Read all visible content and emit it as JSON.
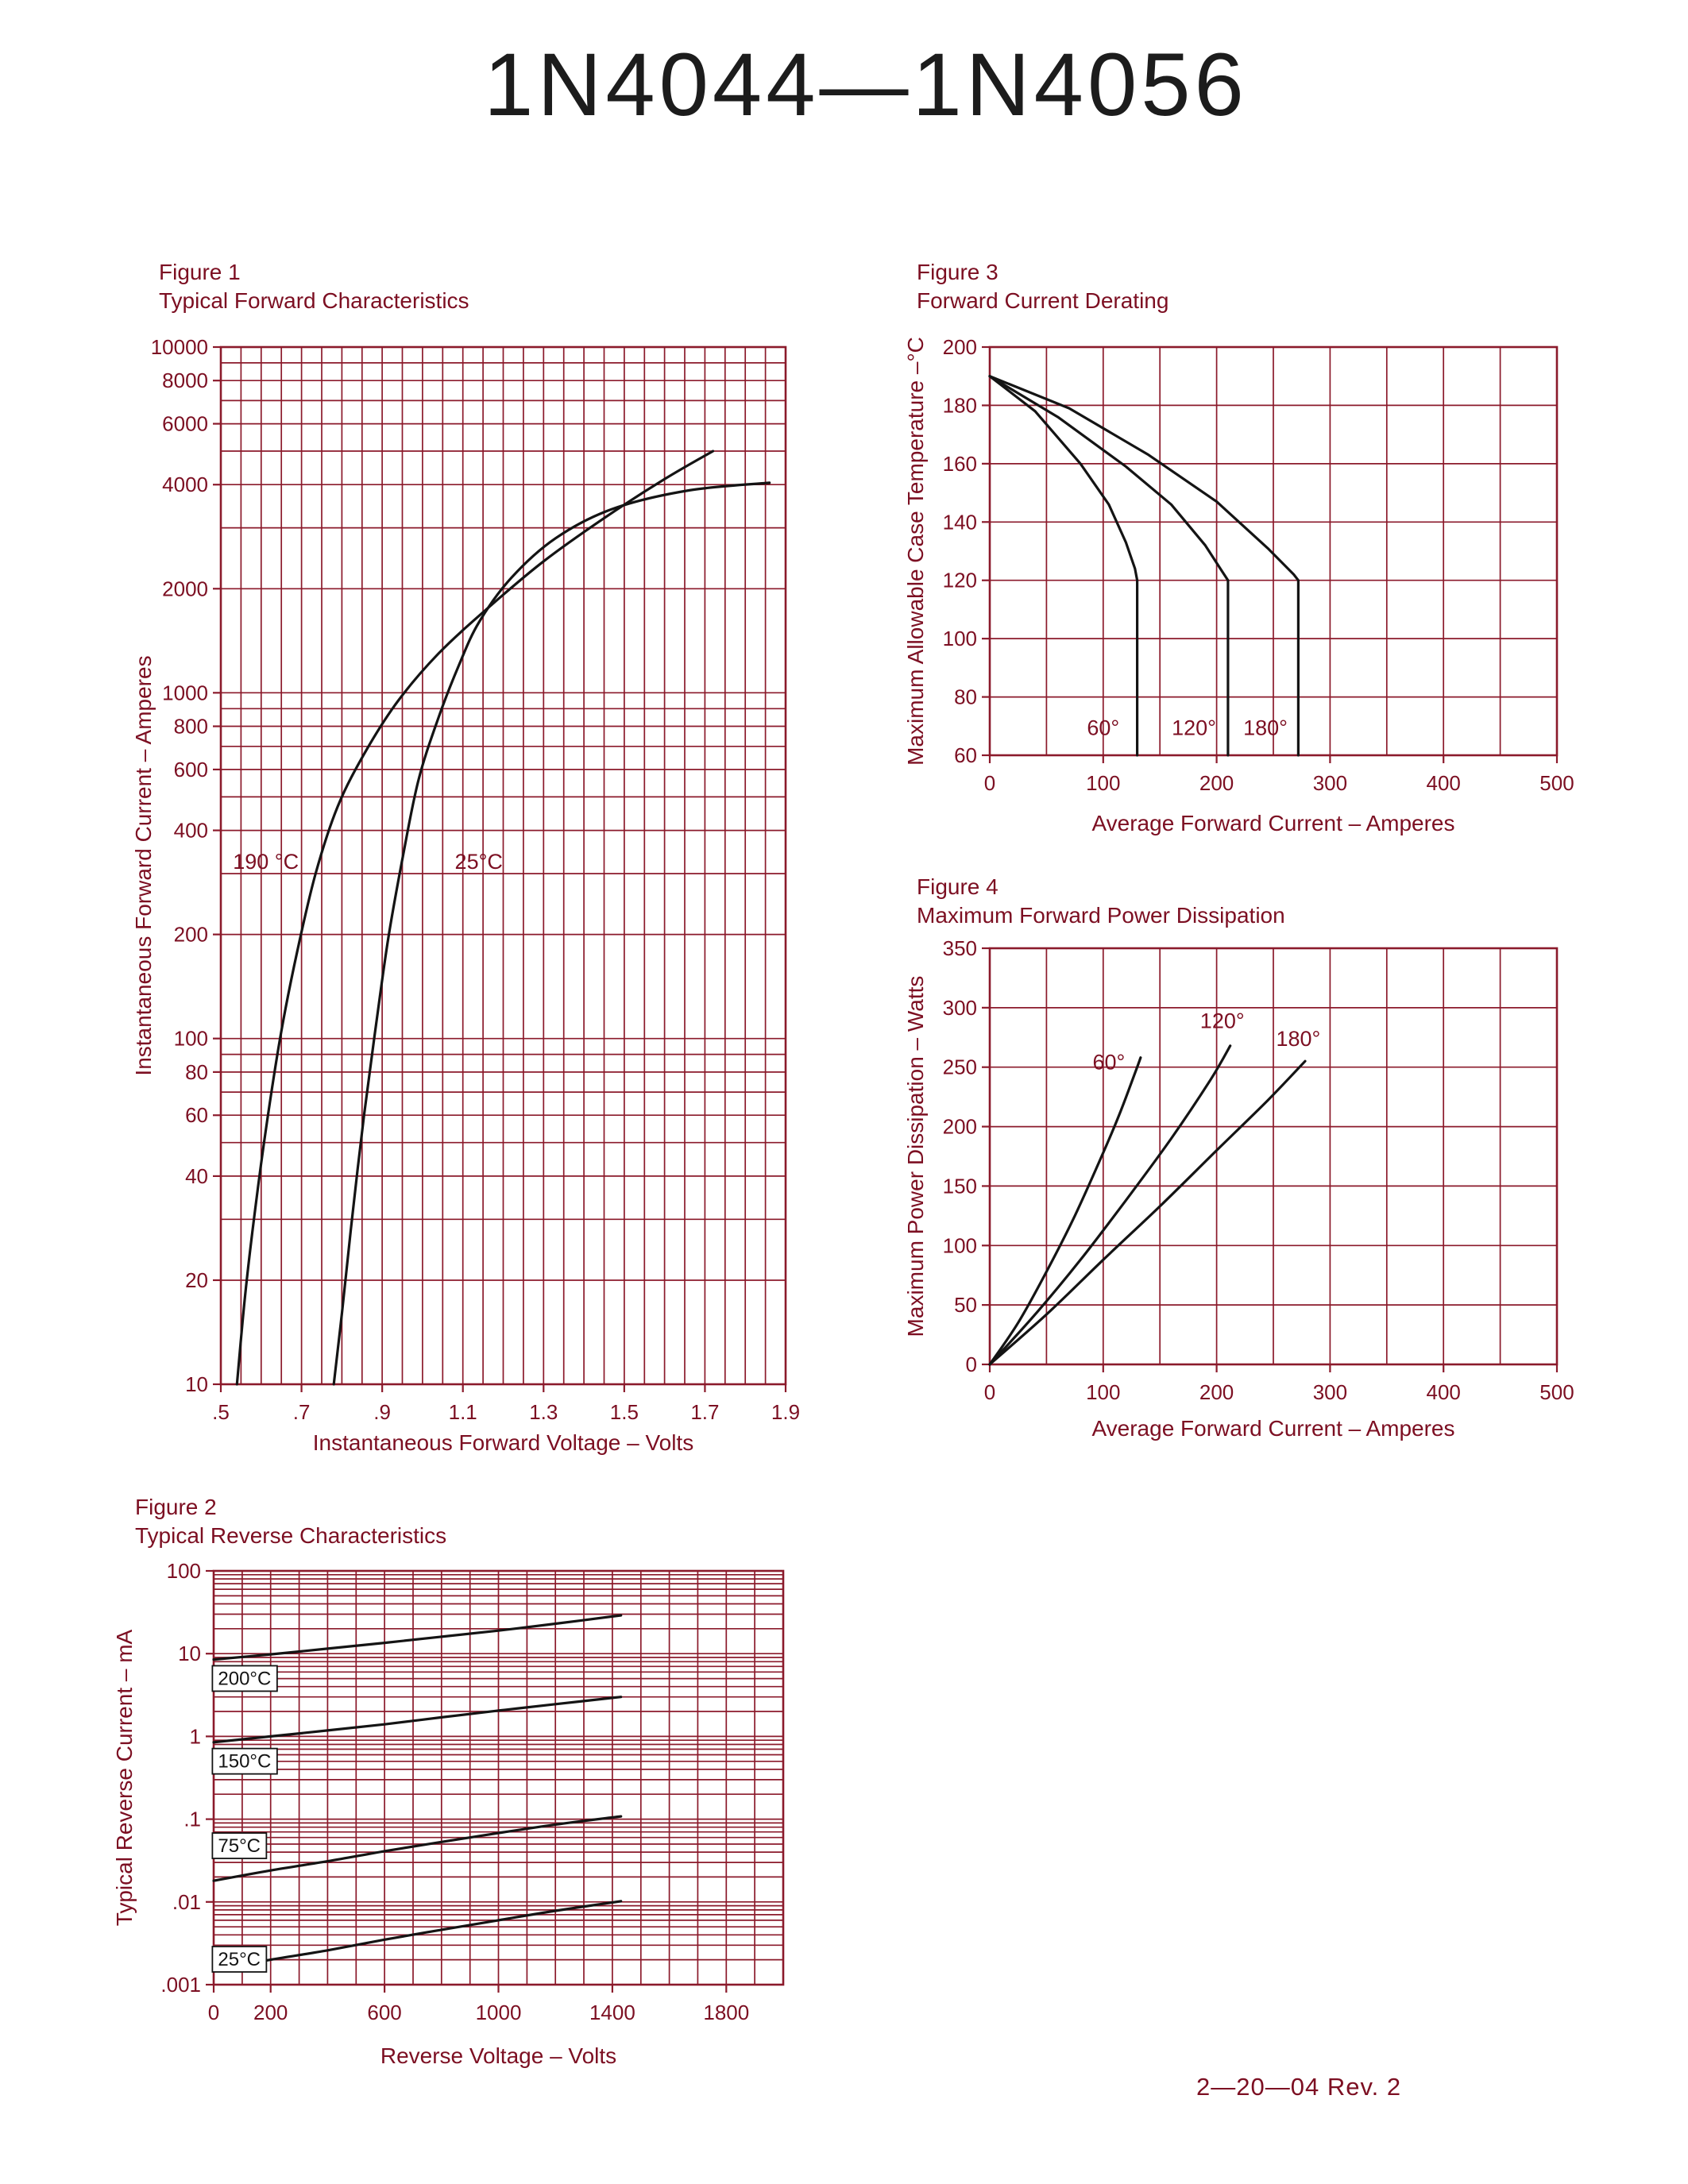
{
  "page": {
    "title": "1N4044—1N4056",
    "footer": "2—20—04   Rev. 2"
  },
  "colors": {
    "grid": "#8b1a2b",
    "text": "#7c0f22",
    "curve": "#141414",
    "title": "#1c1c1c",
    "background": "#ffffff"
  },
  "chart_data": [
    {
      "id": "fig1",
      "type": "line",
      "title": "Figure 1",
      "subtitle": "Typical Forward Characteristics",
      "xlabel": "Instantaneous Forward Voltage – Volts",
      "ylabel": "Instantaneous Forward Current – Amperes",
      "x": {
        "scale": "linear",
        "min": 0.5,
        "max": 1.9,
        "minor_step": 0.05,
        "ticks": [
          {
            "v": 0.5,
            "label": ".5"
          },
          {
            "v": 0.7,
            "label": ".7"
          },
          {
            "v": 0.9,
            "label": ".9"
          },
          {
            "v": 1.1,
            "label": "1.1"
          },
          {
            "v": 1.3,
            "label": "1.3"
          },
          {
            "v": 1.5,
            "label": "1.5"
          },
          {
            "v": 1.7,
            "label": "1.7"
          },
          {
            "v": 1.9,
            "label": "1.9"
          }
        ]
      },
      "y": {
        "scale": "log",
        "min": 10,
        "max": 10000,
        "ticks": [
          {
            "v": 10000,
            "label": "10000"
          },
          {
            "v": 8000,
            "label": "8000"
          },
          {
            "v": 6000,
            "label": "6000"
          },
          {
            "v": 4000,
            "label": "4000"
          },
          {
            "v": 2000,
            "label": "2000"
          },
          {
            "v": 1000,
            "label": "1000"
          },
          {
            "v": 800,
            "label": "800"
          },
          {
            "v": 600,
            "label": "600"
          },
          {
            "v": 400,
            "label": "400"
          },
          {
            "v": 200,
            "label": "200"
          },
          {
            "v": 100,
            "label": "100"
          },
          {
            "v": 80,
            "label": "80"
          },
          {
            "v": 60,
            "label": "60"
          },
          {
            "v": 40,
            "label": "40"
          },
          {
            "v": 20,
            "label": "20"
          },
          {
            "v": 10,
            "label": "10"
          }
        ]
      },
      "series": [
        {
          "name": "190C",
          "label": "190 °C",
          "label_pos": [
            0.53,
            310
          ],
          "label_anchor": "start",
          "smooth": true,
          "points": [
            [
              0.54,
              10
            ],
            [
              0.56,
              18
            ],
            [
              0.585,
              32
            ],
            [
              0.615,
              58
            ],
            [
              0.65,
              105
            ],
            [
              0.69,
              180
            ],
            [
              0.735,
              300
            ],
            [
              0.79,
              470
            ],
            [
              0.86,
              680
            ],
            [
              0.94,
              950
            ],
            [
              1.04,
              1300
            ],
            [
              1.16,
              1750
            ],
            [
              1.3,
              2400
            ],
            [
              1.45,
              3200
            ],
            [
              1.6,
              4150
            ],
            [
              1.72,
              5000
            ]
          ]
        },
        {
          "name": "25C",
          "label": "25°C",
          "label_pos": [
            1.08,
            310
          ],
          "label_anchor": "start",
          "smooth": true,
          "points": [
            [
              0.78,
              10
            ],
            [
              0.8,
              16
            ],
            [
              0.825,
              30
            ],
            [
              0.855,
              60
            ],
            [
              0.885,
              110
            ],
            [
              0.915,
              195
            ],
            [
              0.95,
              330
            ],
            [
              0.99,
              560
            ],
            [
              1.04,
              850
            ],
            [
              1.09,
              1200
            ],
            [
              1.14,
              1600
            ],
            [
              1.22,
              2150
            ],
            [
              1.33,
              2800
            ],
            [
              1.47,
              3400
            ],
            [
              1.66,
              3850
            ],
            [
              1.86,
              4050
            ]
          ]
        }
      ]
    },
    {
      "id": "fig3",
      "type": "line",
      "title": "Figure 3",
      "subtitle": "Forward Current Derating",
      "xlabel": "Average Forward Current – Amperes",
      "ylabel": "Maximum Allowable Case Temperature –°C",
      "x": {
        "scale": "linear",
        "min": 0,
        "max": 500,
        "minor_step": 50,
        "ticks": [
          {
            "v": 0,
            "label": "0"
          },
          {
            "v": 100,
            "label": "100"
          },
          {
            "v": 200,
            "label": "200"
          },
          {
            "v": 300,
            "label": "300"
          },
          {
            "v": 400,
            "label": "400"
          },
          {
            "v": 500,
            "label": "500"
          }
        ]
      },
      "y": {
        "scale": "linear",
        "min": 60,
        "max": 200,
        "minor_step": 20,
        "ticks": [
          {
            "v": 200,
            "label": "200"
          },
          {
            "v": 180,
            "label": "180"
          },
          {
            "v": 160,
            "label": "160"
          },
          {
            "v": 140,
            "label": "140"
          },
          {
            "v": 120,
            "label": "120"
          },
          {
            "v": 100,
            "label": "100"
          },
          {
            "v": 80,
            "label": "80"
          },
          {
            "v": 60,
            "label": "60"
          }
        ]
      },
      "series": [
        {
          "name": "60",
          "label": "60°",
          "label_pos": [
            100,
            67
          ],
          "points": [
            [
              0,
              190
            ],
            [
              40,
              178
            ],
            [
              80,
              160
            ],
            [
              105,
              146
            ],
            [
              120,
              133
            ],
            [
              128,
              124
            ],
            [
              130,
              120
            ],
            [
              130,
              60
            ]
          ]
        },
        {
          "name": "120",
          "label": "120°",
          "label_pos": [
            180,
            67
          ],
          "points": [
            [
              0,
              190
            ],
            [
              60,
              176
            ],
            [
              120,
              159
            ],
            [
              160,
              146
            ],
            [
              190,
              132
            ],
            [
              205,
              123
            ],
            [
              210,
              120
            ],
            [
              210,
              60
            ]
          ]
        },
        {
          "name": "180",
          "label": "180°",
          "label_pos": [
            243,
            67
          ],
          "points": [
            [
              0,
              190
            ],
            [
              70,
              179
            ],
            [
              140,
              163
            ],
            [
              200,
              147
            ],
            [
              245,
              131
            ],
            [
              268,
              122
            ],
            [
              272,
              120
            ],
            [
              272,
              60
            ]
          ]
        }
      ]
    },
    {
      "id": "fig4",
      "type": "line",
      "title": "Figure 4",
      "subtitle": "Maximum Forward Power Dissipation",
      "xlabel": "Average Forward Current – Amperes",
      "ylabel": "Maximum Power Dissipation – Watts",
      "x": {
        "scale": "linear",
        "min": 0,
        "max": 500,
        "minor_step": 50,
        "ticks": [
          {
            "v": 0,
            "label": "0"
          },
          {
            "v": 100,
            "label": "100"
          },
          {
            "v": 200,
            "label": "200"
          },
          {
            "v": 300,
            "label": "300"
          },
          {
            "v": 400,
            "label": "400"
          },
          {
            "v": 500,
            "label": "500"
          }
        ]
      },
      "y": {
        "scale": "linear",
        "min": 0,
        "max": 350,
        "minor_step": 50,
        "ticks": [
          {
            "v": 350,
            "label": "350"
          },
          {
            "v": 300,
            "label": "300"
          },
          {
            "v": 250,
            "label": "250"
          },
          {
            "v": 200,
            "label": "200"
          },
          {
            "v": 150,
            "label": "150"
          },
          {
            "v": 100,
            "label": "100"
          },
          {
            "v": 50,
            "label": "50"
          },
          {
            "v": 0,
            "label": "0"
          }
        ]
      },
      "series": [
        {
          "name": "60",
          "label": "60°",
          "label_pos": [
            105,
            248
          ],
          "smooth": true,
          "points": [
            [
              0,
              0
            ],
            [
              25,
              35
            ],
            [
              50,
              78
            ],
            [
              75,
              125
            ],
            [
              100,
              178
            ],
            [
              115,
              212
            ],
            [
              128,
              245
            ],
            [
              133,
              258
            ]
          ]
        },
        {
          "name": "120",
          "label": "120°",
          "label_pos": [
            205,
            283
          ],
          "smooth": true,
          "points": [
            [
              0,
              0
            ],
            [
              40,
              42
            ],
            [
              80,
              88
            ],
            [
              120,
              138
            ],
            [
              160,
              190
            ],
            [
              195,
              240
            ],
            [
              212,
              268
            ]
          ]
        },
        {
          "name": "180",
          "label": "180°",
          "label_pos": [
            272,
            268
          ],
          "smooth": true,
          "points": [
            [
              0,
              0
            ],
            [
              50,
              42
            ],
            [
              100,
              88
            ],
            [
              150,
              133
            ],
            [
              200,
              180
            ],
            [
              245,
              222
            ],
            [
              278,
              255
            ]
          ]
        }
      ]
    },
    {
      "id": "fig2",
      "type": "line",
      "title": "Figure 2",
      "subtitle": "Typical Reverse Characteristics",
      "xlabel": "Reverse Voltage – Volts",
      "ylabel": "Typical Reverse Current – mA",
      "x": {
        "scale": "linear",
        "min": 0,
        "max": 2000,
        "minor_step": 100,
        "ticks": [
          {
            "v": 0,
            "label": "0"
          },
          {
            "v": 200,
            "label": "200"
          },
          {
            "v": 600,
            "label": "600"
          },
          {
            "v": 1000,
            "label": "1000"
          },
          {
            "v": 1400,
            "label": "1400"
          },
          {
            "v": 1800,
            "label": "1800"
          }
        ]
      },
      "y": {
        "scale": "log",
        "min": 0.001,
        "max": 100,
        "ticks": [
          {
            "v": 100,
            "label": "100"
          },
          {
            "v": 10,
            "label": "10"
          },
          {
            "v": 1,
            "label": "1"
          },
          {
            "v": 0.1,
            "label": ".1"
          },
          {
            "v": 0.01,
            "label": ".01"
          },
          {
            "v": 0.001,
            "label": ".001"
          }
        ]
      },
      "series": [
        {
          "name": "200C",
          "label": "200°C",
          "label_pos": [
            15,
            4.2
          ],
          "label_box": true,
          "smooth": true,
          "points": [
            [
              0,
              8.5
            ],
            [
              200,
              9.8
            ],
            [
              400,
              11.5
            ],
            [
              600,
              13.5
            ],
            [
              800,
              16
            ],
            [
              1000,
              19
            ],
            [
              1200,
              23
            ],
            [
              1430,
              29
            ]
          ]
        },
        {
          "name": "150C",
          "label": "150°C",
          "label_pos": [
            15,
            0.42
          ],
          "label_box": true,
          "smooth": true,
          "points": [
            [
              0,
              0.85
            ],
            [
              200,
              1.0
            ],
            [
              400,
              1.18
            ],
            [
              600,
              1.4
            ],
            [
              800,
              1.7
            ],
            [
              1000,
              2.05
            ],
            [
              1200,
              2.45
            ],
            [
              1430,
              3.0
            ]
          ]
        },
        {
          "name": "75C",
          "label": "75°C",
          "label_pos": [
            15,
            0.04
          ],
          "label_box": true,
          "smooth": true,
          "points": [
            [
              0,
              0.018
            ],
            [
              200,
              0.024
            ],
            [
              400,
              0.031
            ],
            [
              600,
              0.041
            ],
            [
              800,
              0.053
            ],
            [
              1000,
              0.068
            ],
            [
              1200,
              0.086
            ],
            [
              1430,
              0.108
            ]
          ]
        },
        {
          "name": "25C",
          "label": "25°C",
          "label_pos": [
            15,
            0.0017
          ],
          "label_box": true,
          "smooth": true,
          "points": [
            [
              0,
              0.0015
            ],
            [
              200,
              0.002
            ],
            [
              400,
              0.0026
            ],
            [
              600,
              0.0035
            ],
            [
              800,
              0.0046
            ],
            [
              1000,
              0.006
            ],
            [
              1200,
              0.0078
            ],
            [
              1430,
              0.0102
            ]
          ]
        }
      ]
    }
  ]
}
